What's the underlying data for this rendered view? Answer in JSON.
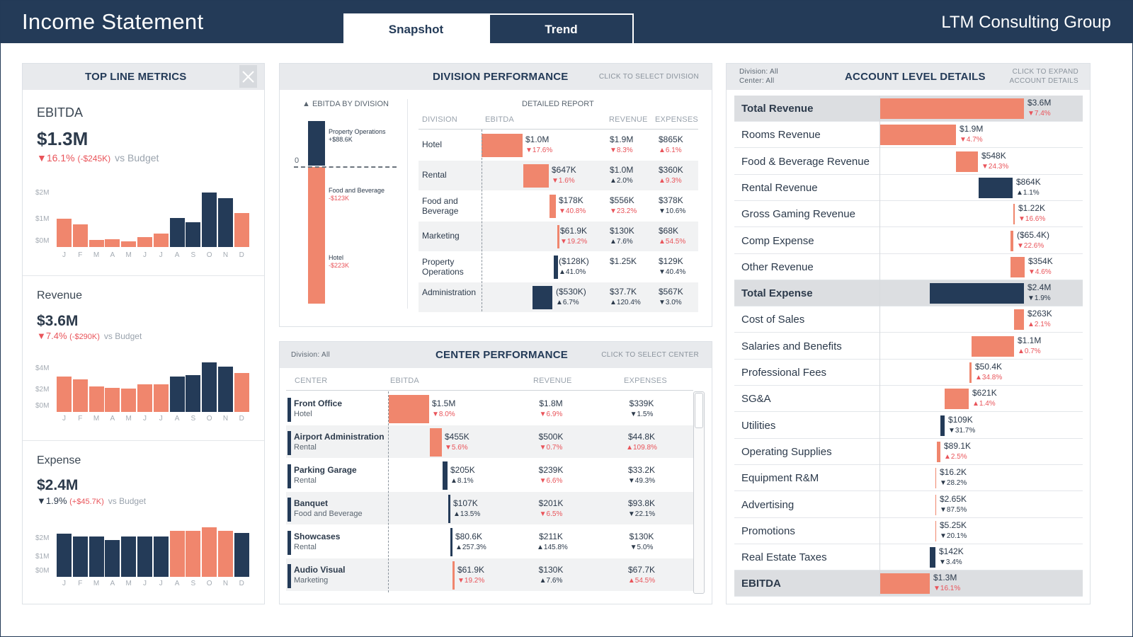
{
  "header": {
    "title": "Income Statement",
    "company": "LTM Consulting Group",
    "tabs": [
      "Snapshot",
      "Trend"
    ]
  },
  "top_line": {
    "title": "TOP LINE METRICS",
    "months": [
      "J",
      "F",
      "M",
      "A",
      "M",
      "J",
      "J",
      "A",
      "S",
      "O",
      "N",
      "D"
    ],
    "ebitda": {
      "name": "EBITDA",
      "value": "$1.3M",
      "change": "▼16.1%",
      "delta": "(-$245K)",
      "vs": "vs Budget",
      "axis": [
        "$2M",
        "$1M",
        "$0M"
      ],
      "bars": [
        0.52,
        0.42,
        0.13,
        0.14,
        0.1,
        0.18,
        0.25,
        0.53,
        0.46,
        1.0,
        0.9,
        0.62
      ],
      "navy": [
        false,
        false,
        false,
        false,
        false,
        false,
        false,
        true,
        true,
        true,
        true,
        false
      ]
    },
    "revenue": {
      "name": "Revenue",
      "value": "$3.6M",
      "change": "▼7.4%",
      "delta": "(-$290K)",
      "vs": "vs Budget",
      "axis": [
        "$4M",
        "$2M",
        "$0M"
      ],
      "bars": [
        0.72,
        0.66,
        0.52,
        0.49,
        0.47,
        0.55,
        0.55,
        0.71,
        0.74,
        1.0,
        0.91,
        0.79
      ],
      "navy": [
        false,
        false,
        false,
        false,
        false,
        false,
        false,
        true,
        true,
        true,
        true,
        false
      ]
    },
    "expense": {
      "name": "Expense",
      "value": "$2.4M",
      "change": "▼1.9%",
      "delta": "(+$45.7K)",
      "vs": "vs Budget",
      "axis": [
        "$2M",
        "$1M",
        "$0M"
      ],
      "bars": [
        0.87,
        0.81,
        0.81,
        0.74,
        0.81,
        0.81,
        0.81,
        0.93,
        0.93,
        1.0,
        0.93,
        0.88
      ],
      "navy": [
        true,
        true,
        true,
        true,
        true,
        true,
        true,
        false,
        false,
        false,
        false,
        true
      ]
    }
  },
  "division": {
    "title": "DIVISION PERFORMANCE",
    "hint": "CLICK TO SELECT DIVISION",
    "waterfall_title": "▲ EBITDA BY DIVISION",
    "zero": "0",
    "wf_labels": [
      {
        "name": "Property Operations",
        "val": "+$88.6K"
      },
      {
        "name": "Food and Beverage",
        "val": "-$123K"
      },
      {
        "name": "Hotel",
        "val": "-$223K"
      }
    ],
    "report_title": "DETAILED REPORT",
    "cols": [
      "DIVISION",
      "EBITDA",
      "REVENUE",
      "EXPENSES"
    ],
    "rows": [
      {
        "name": "Hotel",
        "ebitda": "$1.0M",
        "ec": "▼17.6%",
        "rev": "$1.9M",
        "rc": "▼8.3%",
        "exp": "$865K",
        "xc": "▲6.1%"
      },
      {
        "name": "Rental",
        "ebitda": "$647K",
        "ec": "▼1.6%",
        "rev": "$1.0M",
        "rc": "▲2.0%",
        "exp": "$360K",
        "xc": "▲9.3%"
      },
      {
        "name": "Food and Beverage",
        "ebitda": "$178K",
        "ec": "▼40.8%",
        "rev": "$556K",
        "rc": "▼23.2%",
        "exp": "$378K",
        "xc": "▼10.6%"
      },
      {
        "name": "Marketing",
        "ebitda": "$61.9K",
        "ec": "▼19.2%",
        "rev": "$130K",
        "rc": "▲7.6%",
        "exp": "$68K",
        "xc": "▲54.5%"
      },
      {
        "name": "Property Operations",
        "ebitda": "($128K)",
        "ec": "▲41.0%",
        "rev": "$1.25K",
        "rc": "",
        "exp": "$129K",
        "xc": "▼40.4%"
      },
      {
        "name": "Administration",
        "ebitda": "($530K)",
        "ec": "▲6.7%",
        "rev": "$37.7K",
        "rc": "▲120.4%",
        "exp": "$567K",
        "xc": "▼3.0%"
      }
    ]
  },
  "center": {
    "title": "CENTER PERFORMANCE",
    "filter": "Division: All",
    "hint": "CLICK TO SELECT CENTER",
    "cols": [
      "CENTER",
      "EBITDA",
      "REVENUE",
      "EXPENSES"
    ],
    "rows": [
      {
        "name": "Front Office",
        "div": "Hotel",
        "ebitda": "$1.5M",
        "ec": "▼8.0%",
        "rev": "$1.8M",
        "rc": "▼6.9%",
        "exp": "$339K",
        "xc": "▼1.5%"
      },
      {
        "name": "Airport Administration",
        "div": "Rental",
        "ebitda": "$455K",
        "ec": "▼5.6%",
        "rev": "$500K",
        "rc": "▼0.7%",
        "exp": "$44.8K",
        "xc": "▲109.8%"
      },
      {
        "name": "Parking Garage",
        "div": "Rental",
        "ebitda": "$205K",
        "ec": "▲8.1%",
        "rev": "$239K",
        "rc": "▼6.6%",
        "exp": "$33.2K",
        "xc": "▼49.3%"
      },
      {
        "name": "Banquet",
        "div": "Food and Beverage",
        "ebitda": "$107K",
        "ec": "▲13.5%",
        "rev": "$201K",
        "rc": "▼6.5%",
        "exp": "$93.8K",
        "xc": "▼22.1%"
      },
      {
        "name": "Showcases",
        "div": "Rental",
        "ebitda": "$80.6K",
        "ec": "▲257.3%",
        "rev": "$211K",
        "rc": "▲145.8%",
        "exp": "$130K",
        "xc": "▼5.0%"
      },
      {
        "name": "Audio Visual",
        "div": "Marketing",
        "ebitda": "$61.9K",
        "ec": "▼19.2%",
        "rev": "$130K",
        "rc": "▲7.6%",
        "exp": "$67.7K",
        "xc": "▲54.5%"
      }
    ]
  },
  "account": {
    "title": "ACCOUNT LEVEL DETAILS",
    "filter1": "Division: All",
    "filter2": "Center: All",
    "hint1": "CLICK TO EXPAND",
    "hint2": "ACCOUNT DETAILS",
    "rows": [
      {
        "name": "Total Revenue",
        "val": "$3.6M",
        "chg": "▼7.4%",
        "total": true
      },
      {
        "name": "Rooms Revenue",
        "val": "$1.9M",
        "chg": "▼4.7%"
      },
      {
        "name": "Food & Beverage Revenue",
        "val": "$548K",
        "chg": "▼24.3%"
      },
      {
        "name": "Rental Revenue",
        "val": "$864K",
        "chg": "▲1.1%"
      },
      {
        "name": "Gross Gaming Revenue",
        "val": "$1.22K",
        "chg": "▼16.6%"
      },
      {
        "name": "Comp Expense",
        "val": "($65.4K)",
        "chg": "▼22.6%"
      },
      {
        "name": "Other Revenue",
        "val": "$354K",
        "chg": "▼4.6%"
      },
      {
        "name": "Total Expense",
        "val": "$2.4M",
        "chg": "▼1.9%",
        "total": true
      },
      {
        "name": "Cost of Sales",
        "val": "$263K",
        "chg": "▲2.1%"
      },
      {
        "name": "Salaries and Benefits",
        "val": "$1.1M",
        "chg": "▲0.7%"
      },
      {
        "name": "Professional Fees",
        "val": "$50.4K",
        "chg": "▲34.8%"
      },
      {
        "name": "SG&A",
        "val": "$621K",
        "chg": "▲1.4%"
      },
      {
        "name": "Utilities",
        "val": "$109K",
        "chg": "▼31.7%"
      },
      {
        "name": "Operating Supplies",
        "val": "$89.1K",
        "chg": "▲2.5%"
      },
      {
        "name": "Equipment R&M",
        "val": "$16.2K",
        "chg": "▼28.2%"
      },
      {
        "name": "Advertising",
        "val": "$2.65K",
        "chg": "▼87.5%"
      },
      {
        "name": "Promotions",
        "val": "$5.25K",
        "chg": "▼20.1%"
      },
      {
        "name": "Real Estate Taxes",
        "val": "$142K",
        "chg": "▼3.4%"
      },
      {
        "name": "EBITDA",
        "val": "$1.3M",
        "chg": "▼16.1%",
        "total": true
      }
    ]
  },
  "colors": {
    "navy": "#243b58",
    "orange": "#f0866d",
    "red": "#e9545a"
  }
}
